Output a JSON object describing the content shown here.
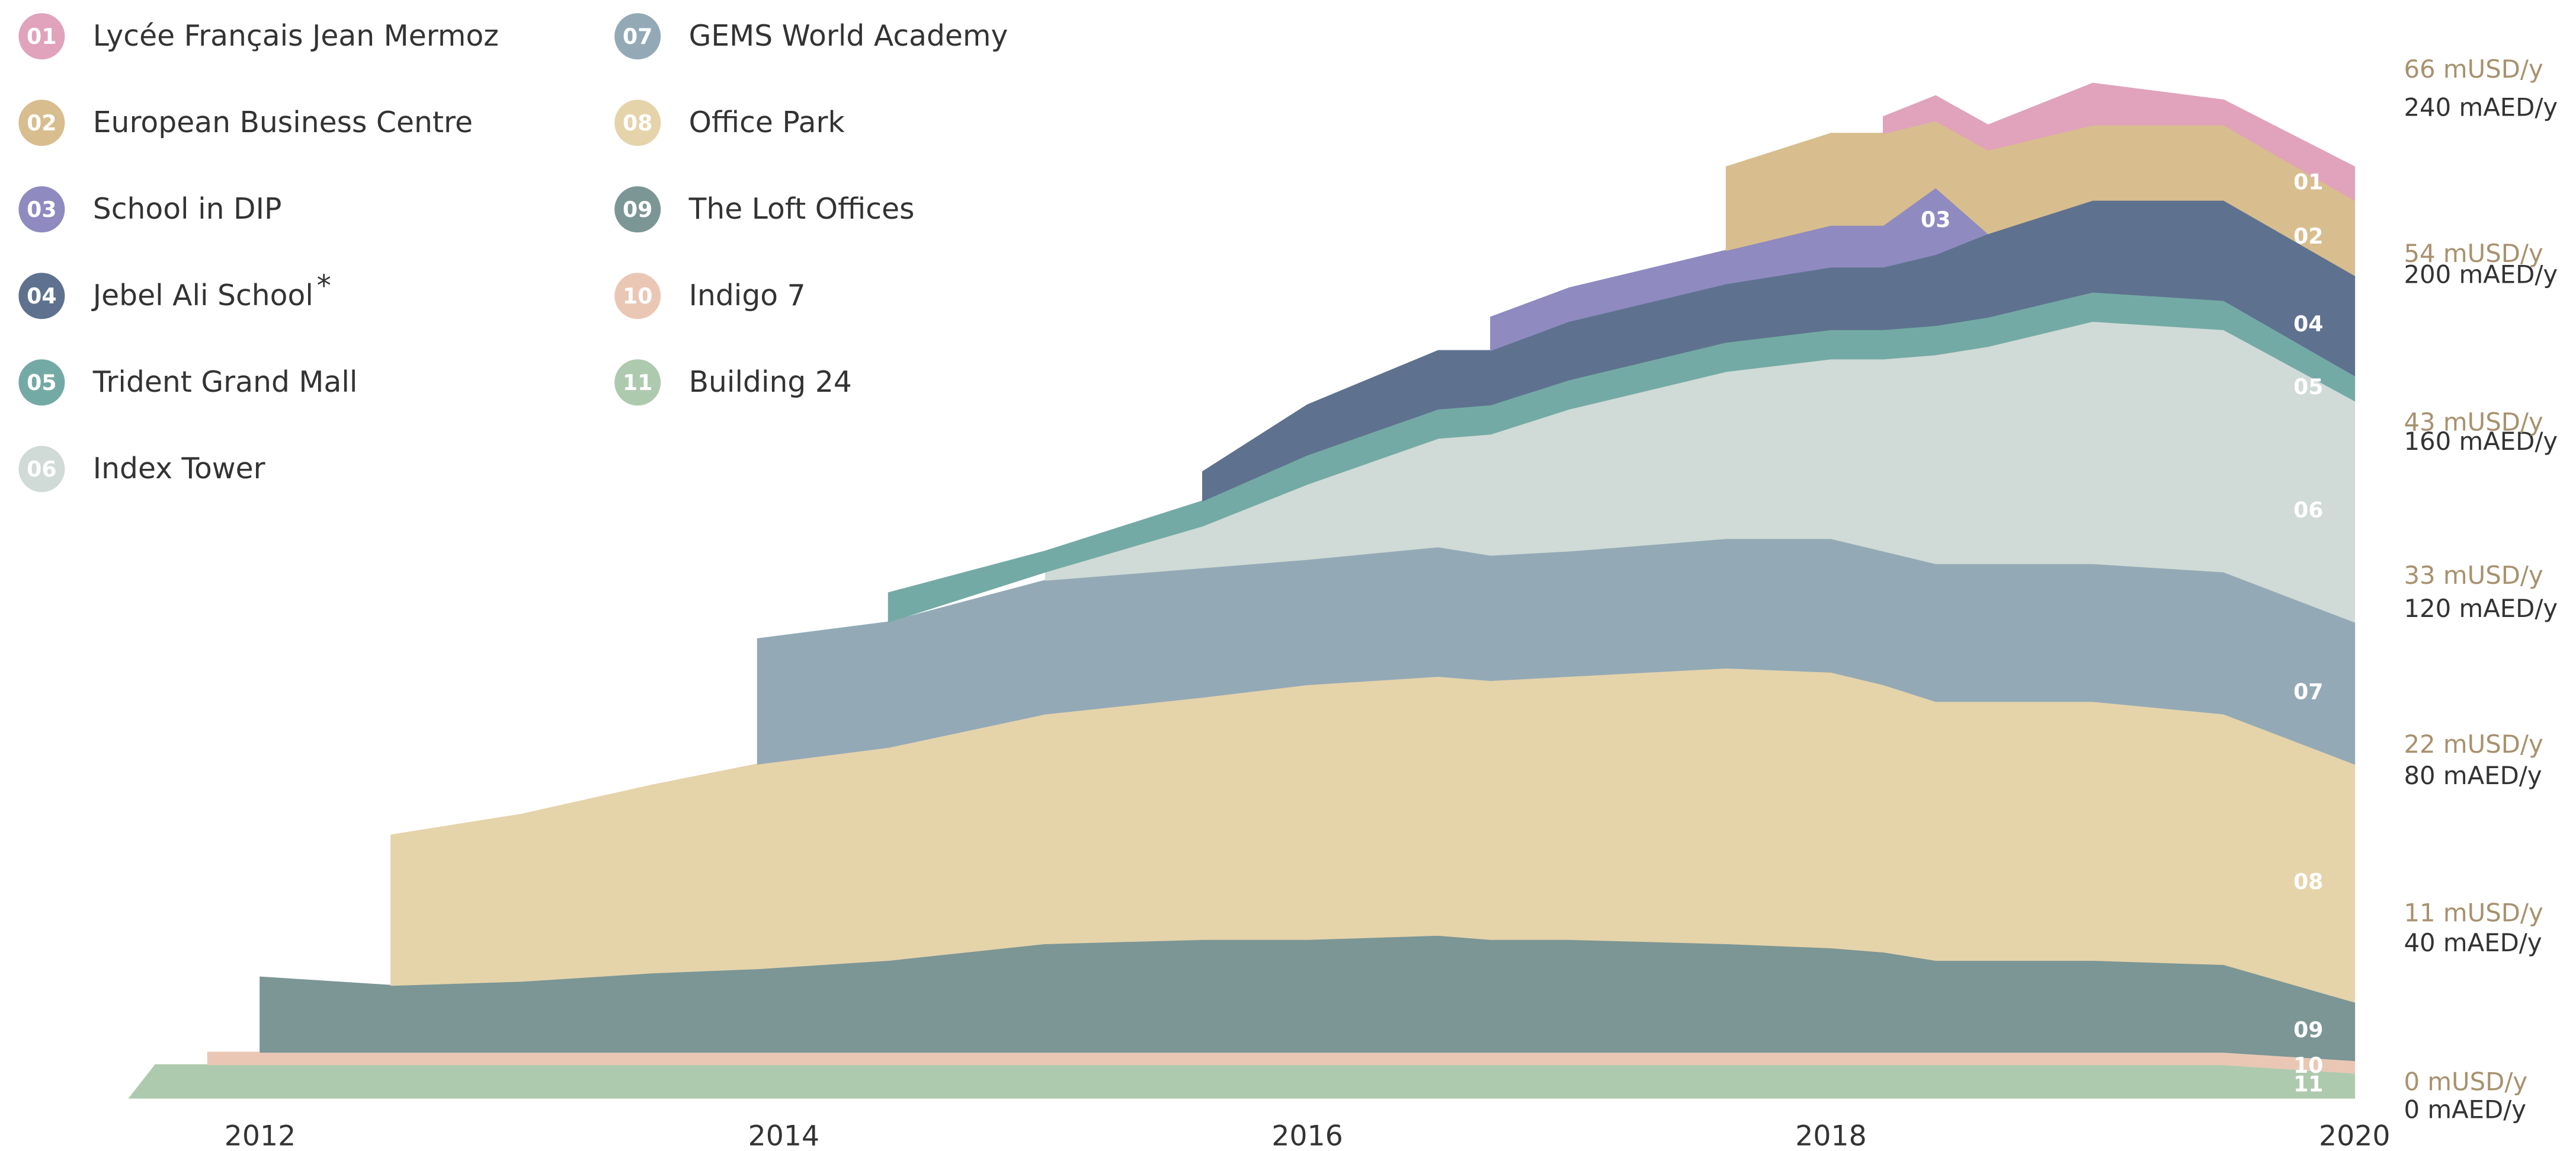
{
  "chart_data": {
    "type": "stacked_area",
    "x": [
      2011.5,
      2011.6,
      2011.8,
      2012.0,
      2012.5,
      2013.0,
      2013.5,
      2013.9,
      2014.4,
      2015.0,
      2015.6,
      2016.0,
      2016.5,
      2016.7,
      2017.0,
      2017.6,
      2018.0,
      2018.2,
      2018.4,
      2018.6,
      2019.0,
      2019.5,
      2020.0
    ],
    "xlim": [
      2011.5,
      2020.1
    ],
    "xticks": [
      2012,
      2014,
      2016,
      2018,
      2020
    ],
    "ylim": [
      0,
      240
    ],
    "yticks": [
      {
        "value": 0,
        "label": "0 mAED/y"
      },
      {
        "value": 40,
        "label": "40 mAED/y"
      },
      {
        "value": 80,
        "label": "80 mAED/y"
      },
      {
        "value": 120,
        "label": "120 mAED/y"
      },
      {
        "value": 160,
        "label": "160 mAED/y"
      },
      {
        "value": 200,
        "label": "200 mAED/y"
      },
      {
        "value": 240,
        "label": "240 mAED/y"
      }
    ],
    "y2lim": [
      0,
      65.35
    ],
    "y2ticks": [
      {
        "value": 0,
        "label": "0 mUSD/y"
      },
      {
        "value": 11,
        "label": "11 mUSD/y"
      },
      {
        "value": 22,
        "label": "22 mUSD/y"
      },
      {
        "value": 33,
        "label": "33 mUSD/y"
      },
      {
        "value": 43,
        "label": "43 mUSD/y"
      },
      {
        "value": 54,
        "label": "54 mUSD/y"
      },
      {
        "value": 66,
        "label": "66 mUSD/y"
      }
    ],
    "series": [
      {
        "id": "01",
        "name": "Lycée Français Jean Mermoz",
        "color": "#e0a3bb",
        "values": [
          null,
          null,
          null,
          null,
          null,
          null,
          null,
          null,
          null,
          null,
          null,
          null,
          null,
          null,
          null,
          null,
          null,
          4,
          6,
          6,
          10,
          6,
          8
        ]
      },
      {
        "id": "02",
        "name": "European Business Centre",
        "color": "#d8bd8e",
        "values": [
          null,
          null,
          null,
          null,
          null,
          null,
          null,
          null,
          null,
          null,
          null,
          null,
          null,
          null,
          null,
          20,
          22,
          22,
          16,
          20,
          18,
          18,
          18
        ]
      },
      {
        "id": "03",
        "name": "School in DIP",
        "color": "#8f8ac0",
        "values": [
          null,
          null,
          null,
          null,
          null,
          null,
          null,
          null,
          null,
          null,
          null,
          null,
          null,
          8,
          8,
          8,
          10,
          10,
          16,
          0,
          null,
          null,
          null
        ]
      },
      {
        "id": "04",
        "name": "Jebel Ali School",
        "footnote_mark": "*",
        "color": "#5e728f",
        "values": [
          null,
          null,
          null,
          null,
          null,
          null,
          null,
          null,
          null,
          null,
          7,
          12,
          14,
          13,
          14,
          14,
          15,
          15,
          17,
          20,
          22,
          24,
          24
        ]
      },
      {
        "id": "05",
        "name": "Trident Grand Mall",
        "color": "#74aaa5",
        "values": [
          null,
          null,
          null,
          null,
          null,
          null,
          null,
          null,
          7,
          5,
          6,
          7,
          7,
          7,
          7,
          7,
          7,
          7,
          7,
          7,
          7,
          7,
          6
        ]
      },
      {
        "id": "06",
        "name": "Index Tower",
        "color": "#d0dad6",
        "values": [
          null,
          null,
          null,
          null,
          null,
          null,
          null,
          null,
          null,
          2,
          10,
          18,
          26,
          29,
          34,
          40,
          43,
          46,
          50,
          52,
          58,
          58,
          53
        ]
      },
      {
        "id": "07",
        "name": "GEMS World Academy",
        "color": "#93aab6",
        "values": [
          null,
          null,
          null,
          null,
          null,
          null,
          null,
          30,
          30,
          32,
          31,
          30,
          31,
          30,
          30,
          31,
          32,
          32,
          33,
          33,
          33,
          34,
          34
        ]
      },
      {
        "id": "08",
        "name": "Office Park",
        "color": "#e5d3aa",
        "values": [
          null,
          null,
          null,
          null,
          36,
          40,
          45,
          49,
          51,
          55,
          58,
          61,
          62,
          62,
          63,
          66,
          66,
          64,
          62,
          62,
          62,
          60,
          57
        ]
      },
      {
        "id": "09",
        "name": "The Loft Offices",
        "color": "#7b9695",
        "values": [
          null,
          null,
          null,
          18,
          16,
          17,
          19,
          20,
          22,
          26,
          27,
          27,
          28,
          27,
          27,
          26,
          25,
          24,
          22,
          22,
          22,
          21,
          14
        ]
      },
      {
        "id": "10",
        "name": "Indigo 7",
        "color": "#eac7b5",
        "values": [
          null,
          null,
          3,
          3,
          3,
          3,
          3,
          3,
          3,
          3,
          3,
          3,
          3,
          3,
          3,
          3,
          3,
          3,
          3,
          3,
          3,
          3,
          3
        ]
      },
      {
        "id": "11",
        "name": "Building 24",
        "color": "#aecaae",
        "values": [
          0,
          8,
          8,
          8,
          8,
          8,
          8,
          8,
          8,
          8,
          8,
          8,
          8,
          8,
          8,
          8,
          8,
          8,
          8,
          8,
          8,
          8,
          6
        ]
      }
    ]
  }
}
